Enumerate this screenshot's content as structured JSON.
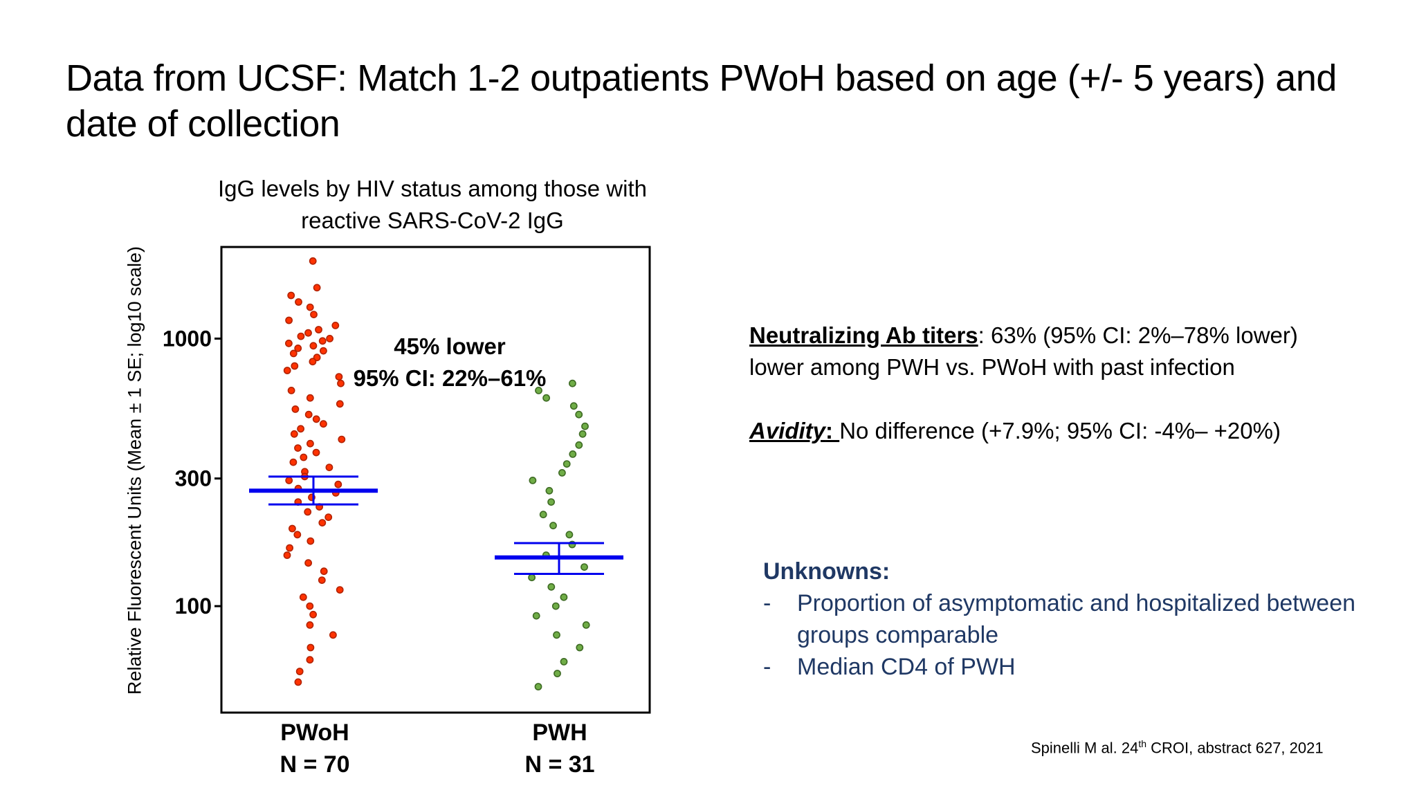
{
  "slide": {
    "title": "Data from UCSF: Match 1-2 outpatients PWoH based on age (+/- 5 years) and date of collection"
  },
  "chart_data": {
    "type": "scatter",
    "title": "IgG levels by HIV status among those with reactive SARS-CoV-2 IgG",
    "ylabel": "Relative Fluorescent Units (Mean ± 1 SE; log10 scale)",
    "yscale": "log10",
    "ylim": [
      40,
      2200
    ],
    "yticks": [
      {
        "value": 100,
        "label": "100"
      },
      {
        "value": 300,
        "label": "300"
      },
      {
        "value": 1000,
        "label": "1000"
      }
    ],
    "categories": [
      "PWoH",
      "PWH"
    ],
    "groups": [
      {
        "label": "PWoH",
        "n_label": "N = 70",
        "color": "#FF3300",
        "edge_color": "#B22200",
        "mean": 270,
        "se_upper": 305,
        "se_lower": 240,
        "values": [
          1950,
          1550,
          1450,
          1370,
          1310,
          1230,
          1170,
          1120,
          1080,
          1050,
          1020,
          1000,
          980,
          960,
          940,
          920,
          900,
          880,
          850,
          820,
          790,
          760,
          720,
          680,
          640,
          600,
          570,
          545,
          520,
          500,
          480,
          460,
          440,
          420,
          405,
          390,
          375,
          360,
          345,
          330,
          318,
          305,
          295,
          285,
          275,
          265,
          255,
          245,
          235,
          225,
          215,
          205,
          195,
          185,
          175,
          165,
          155,
          145,
          135,
          125,
          115,
          108,
          100,
          93,
          85,
          78,
          70,
          63,
          57,
          52
        ]
      },
      {
        "label": "PWH",
        "n_label": "N = 31",
        "color": "#70AD47",
        "edge_color": "#3E6B24",
        "mean": 152,
        "se_upper": 172,
        "se_lower": 132,
        "values": [
          680,
          640,
          600,
          560,
          520,
          470,
          440,
          400,
          370,
          340,
          315,
          295,
          270,
          245,
          220,
          200,
          185,
          170,
          155,
          140,
          128,
          118,
          108,
          100,
          92,
          85,
          78,
          70,
          62,
          56,
          50
        ]
      }
    ],
    "annotation": {
      "line1": "45% lower",
      "line2": "95% CI: 22%–61%"
    },
    "mean_line_color": "#0000EE"
  },
  "findings": {
    "nab_label": "Neutralizing Ab titers",
    "nab_text": ": 63% (95% CI: 2%–78% lower)",
    "nab_text2": "lower among PWH vs. PWoH with past infection",
    "avidity_label": "Avidity",
    "avidity_colon": ": ",
    "avidity_text": "No difference  (+7.9%; 95% CI: -4%– +20%)"
  },
  "unknowns": {
    "heading": "Unknowns:",
    "dash": "-",
    "items": [
      "Proportion of asymptomatic and hospitalized between groups comparable",
      "Median CD4 of PWH"
    ]
  },
  "citation": {
    "author": "Spinelli M al.  24",
    "sup": "th",
    "rest": " CROI, abstract 627,  2021"
  }
}
